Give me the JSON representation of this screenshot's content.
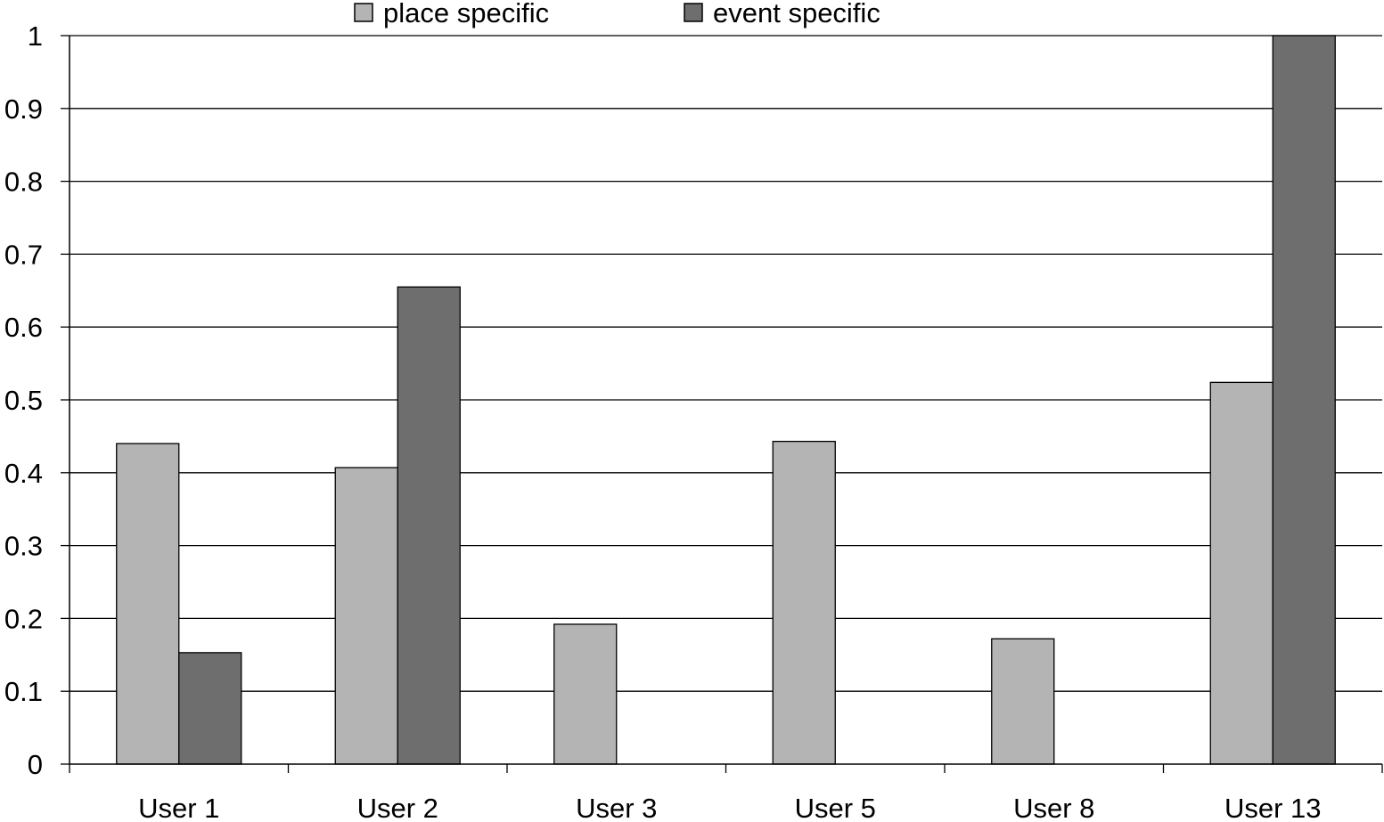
{
  "chart_data": {
    "type": "bar",
    "categories": [
      "User 1",
      "User 2",
      "User 3",
      "User 5",
      "User 8",
      "User 13"
    ],
    "series": [
      {
        "name": "place specific",
        "values": [
          0.44,
          0.407,
          0.192,
          0.443,
          0.172,
          0.524
        ],
        "color": "#b4b4b4"
      },
      {
        "name": "event specific",
        "values": [
          0.153,
          0.655,
          0,
          0,
          0,
          1.0
        ],
        "color": "#6e6e6e"
      }
    ],
    "ylim": [
      0,
      1
    ],
    "yticks": [
      "0",
      "0.1",
      "0.2",
      "0.3",
      "0.4",
      "0.5",
      "0.6",
      "0.7",
      "0.8",
      "0.9",
      "1"
    ],
    "grid": true,
    "legend_position": "top"
  }
}
